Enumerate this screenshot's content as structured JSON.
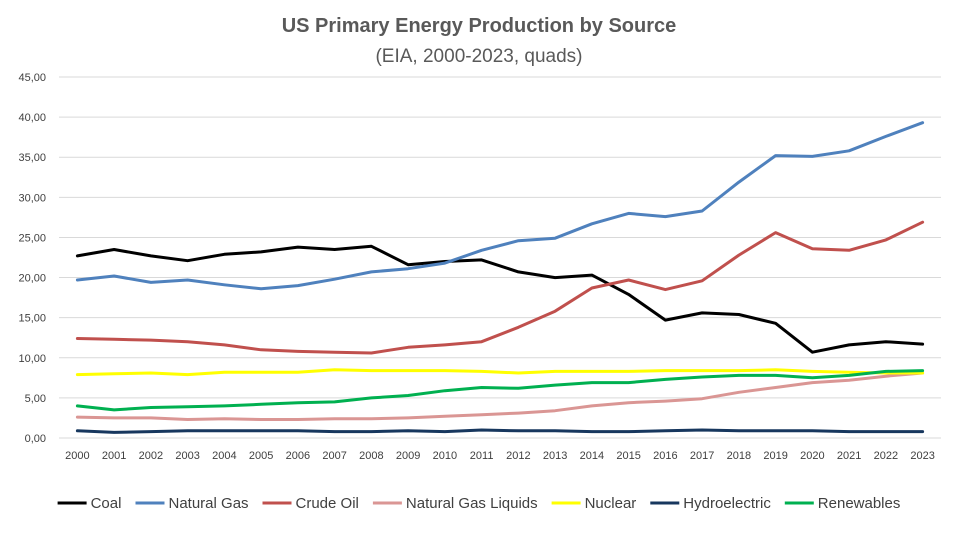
{
  "chart_data": {
    "type": "line",
    "title": "US Primary Energy Production by Source",
    "subtitle": "(EIA, 2000-2023, quads)",
    "xlabel": "",
    "ylabel": "",
    "ylim": [
      0,
      45
    ],
    "ytick_step": 5,
    "ytick_labels": [
      "0,00",
      "5,00",
      "10,00",
      "15,00",
      "20,00",
      "25,00",
      "30,00",
      "35,00",
      "40,00",
      "45,00"
    ],
    "grid": true,
    "legend_position": "bottom",
    "x": [
      "2000",
      "2001",
      "2002",
      "2003",
      "2004",
      "2005",
      "2006",
      "2007",
      "2008",
      "2009",
      "2010",
      "2011",
      "2012",
      "2013",
      "2014",
      "2015",
      "2016",
      "2017",
      "2018",
      "2019",
      "2020",
      "2021",
      "2022",
      "2023"
    ],
    "series": [
      {
        "name": "Coal",
        "color": "#000000",
        "values": [
          22.7,
          23.5,
          22.7,
          22.1,
          22.9,
          23.2,
          23.8,
          23.5,
          23.9,
          21.6,
          22.0,
          22.2,
          20.7,
          20.0,
          20.3,
          17.9,
          14.7,
          15.6,
          15.4,
          14.3,
          10.7,
          11.6,
          12.0,
          11.7
        ]
      },
      {
        "name": "Natural Gas",
        "color": "#4F81BD",
        "values": [
          19.7,
          20.2,
          19.4,
          19.7,
          19.1,
          18.6,
          19.0,
          19.8,
          20.7,
          21.1,
          21.8,
          23.4,
          24.6,
          24.9,
          26.7,
          28.0,
          27.6,
          28.3,
          31.9,
          35.2,
          35.1,
          35.8,
          37.6,
          39.3
        ]
      },
      {
        "name": "Crude Oil",
        "color": "#C0504D",
        "values": [
          12.4,
          12.3,
          12.2,
          12.0,
          11.6,
          11.0,
          10.8,
          10.7,
          10.6,
          11.3,
          11.6,
          12.0,
          13.8,
          15.8,
          18.7,
          19.7,
          18.5,
          19.6,
          22.8,
          25.6,
          23.6,
          23.4,
          24.7,
          26.9
        ]
      },
      {
        "name": "Natural Gas Liquids",
        "color": "#DA9694",
        "values": [
          2.6,
          2.5,
          2.5,
          2.3,
          2.4,
          2.3,
          2.3,
          2.4,
          2.4,
          2.5,
          2.7,
          2.9,
          3.1,
          3.4,
          4.0,
          4.4,
          4.6,
          4.9,
          5.7,
          6.3,
          6.9,
          7.2,
          7.7,
          8.1
        ]
      },
      {
        "name": "Nuclear",
        "color": "#FFFF00",
        "values": [
          7.9,
          8.0,
          8.1,
          7.9,
          8.2,
          8.2,
          8.2,
          8.5,
          8.4,
          8.4,
          8.4,
          8.3,
          8.1,
          8.3,
          8.3,
          8.3,
          8.4,
          8.4,
          8.4,
          8.5,
          8.3,
          8.2,
          8.1,
          8.1
        ]
      },
      {
        "name": "Hydroelectric",
        "color": "#17375E",
        "values": [
          0.9,
          0.7,
          0.8,
          0.9,
          0.9,
          0.9,
          0.9,
          0.8,
          0.8,
          0.9,
          0.8,
          1.0,
          0.9,
          0.9,
          0.8,
          0.8,
          0.9,
          1.0,
          0.9,
          0.9,
          0.9,
          0.8,
          0.8,
          0.8
        ]
      },
      {
        "name": "Renewables",
        "color": "#00B050",
        "values": [
          4.0,
          3.5,
          3.8,
          3.9,
          4.0,
          4.2,
          4.4,
          4.5,
          5.0,
          5.3,
          5.9,
          6.3,
          6.2,
          6.6,
          6.9,
          6.9,
          7.3,
          7.6,
          7.8,
          7.8,
          7.5,
          7.8,
          8.3,
          8.4
        ]
      }
    ]
  }
}
